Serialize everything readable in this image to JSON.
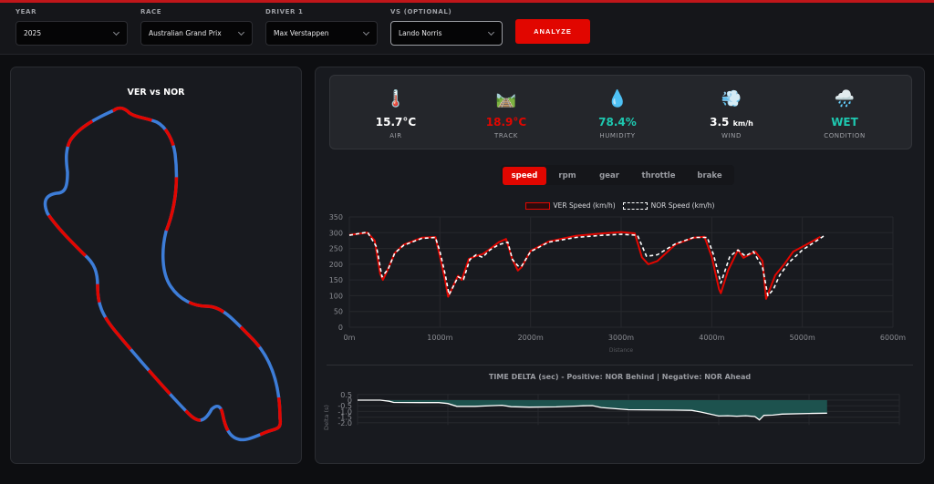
{
  "header": {
    "fields": [
      {
        "label": "YEAR",
        "value": "2025"
      },
      {
        "label": "RACE",
        "value": "Australian Grand Prix"
      },
      {
        "label": "DRIVER 1",
        "value": "Max Verstappen"
      },
      {
        "label": "VS (OPTIONAL)",
        "value": "Lando Norris"
      }
    ],
    "analyze_label": "ANALYZE"
  },
  "track_map": {
    "title": "VER vs NOR",
    "colors": {
      "VER": "#e10600",
      "NOR": "#3d7dd8"
    }
  },
  "weather": [
    {
      "icon": "🌡️",
      "icon_name": "thermometer-icon",
      "value": "15.7°C",
      "unit": "",
      "label": "AIR",
      "color": "#ffffff"
    },
    {
      "icon": "🛤️",
      "icon_name": "track-icon",
      "value": "18.9°C",
      "unit": "",
      "label": "TRACK",
      "color": "#e10600"
    },
    {
      "icon": "💧",
      "icon_name": "droplet-icon",
      "value": "78.4%",
      "unit": "",
      "label": "HUMIDITY",
      "color": "#1ec8b0"
    },
    {
      "icon": "💨",
      "icon_name": "wind-icon",
      "value": "3.5",
      "unit": "km/h",
      "label": "WIND",
      "color": "#ffffff"
    },
    {
      "icon": "🌧️",
      "icon_name": "rain-cloud-icon",
      "value": "WET",
      "unit": "",
      "label": "CONDITION",
      "color": "#1ec8b0"
    }
  ],
  "tabs": [
    "speed",
    "rpm",
    "gear",
    "throttle",
    "brake"
  ],
  "active_tab": "speed",
  "chart_data": [
    {
      "type": "line",
      "title": "",
      "xlabel": "Distance",
      "ylabel": "",
      "xlim": [
        0,
        6000
      ],
      "ylim": [
        0,
        350
      ],
      "x_ticks": [
        "0m",
        "1000m",
        "2000m",
        "3000m",
        "4000m",
        "5000m",
        "6000m"
      ],
      "y_ticks": [
        "0",
        "50",
        "100",
        "150",
        "200",
        "250",
        "300",
        "350"
      ],
      "grid": true,
      "legend_position": "top",
      "series": [
        {
          "name": "VER Speed (km/h)",
          "color": "#e10600",
          "style": "solid",
          "x": [
            0,
            200,
            280,
            340,
            370,
            420,
            500,
            600,
            800,
            950,
            1000,
            1060,
            1090,
            1130,
            1200,
            1240,
            1320,
            1400,
            1470,
            1550,
            1650,
            1730,
            1800,
            1860,
            1900,
            2000,
            2200,
            2500,
            2800,
            3000,
            3150,
            3230,
            3300,
            3400,
            3600,
            3800,
            3920,
            4000,
            4080,
            4100,
            4180,
            4290,
            4350,
            4480,
            4560,
            4600,
            4640,
            4700,
            4800,
            4900,
            5000,
            5200
          ],
          "values": [
            293,
            300,
            275,
            170,
            150,
            180,
            235,
            262,
            284,
            286,
            225,
            145,
            97,
            120,
            163,
            150,
            217,
            226,
            232,
            248,
            270,
            280,
            215,
            180,
            190,
            242,
            272,
            290,
            298,
            302,
            298,
            222,
            200,
            210,
            263,
            284,
            287,
            224,
            121,
            108,
            180,
            245,
            220,
            240,
            210,
            90,
            120,
            165,
            200,
            240,
            255,
            287
          ]
        },
        {
          "name": "NOR Speed (km/h)",
          "color": "#ffffff",
          "style": "dashed",
          "x": [
            0,
            200,
            300,
            360,
            430,
            500,
            600,
            800,
            950,
            1000,
            1060,
            1100,
            1140,
            1200,
            1260,
            1330,
            1400,
            1470,
            1550,
            1650,
            1750,
            1800,
            1860,
            1900,
            2000,
            2200,
            2500,
            2800,
            3000,
            3180,
            3280,
            3400,
            3600,
            3800,
            3950,
            4020,
            4100,
            4200,
            4290,
            4370,
            4460,
            4560,
            4620,
            4680,
            4750,
            4850,
            5000,
            5250
          ],
          "values": [
            292,
            302,
            255,
            160,
            185,
            235,
            260,
            282,
            285,
            240,
            165,
            103,
            125,
            160,
            152,
            215,
            230,
            222,
            245,
            262,
            270,
            215,
            195,
            193,
            240,
            270,
            285,
            292,
            295,
            292,
            225,
            230,
            265,
            285,
            285,
            230,
            140,
            225,
            245,
            226,
            240,
            190,
            100,
            120,
            165,
            205,
            245,
            292
          ]
        }
      ]
    },
    {
      "type": "area",
      "title": "TIME DELTA (sec) - Positive: NOR Behind | Negative: NOR Ahead",
      "xlabel": "",
      "ylabel": "Delta (s)",
      "xlim": [
        0,
        6000
      ],
      "ylim": [
        -2.1,
        0.5
      ],
      "y_ticks": [
        "0.5",
        "0",
        "-0.5",
        "-1.0",
        "-1.5",
        "-2.0"
      ],
      "grid": true,
      "series": [
        {
          "name": "Time delta",
          "color": "#ffffff",
          "fill": "#1d524e",
          "x": [
            0,
            250,
            350,
            400,
            700,
            900,
            1000,
            1100,
            1300,
            1500,
            1600,
            1700,
            1900,
            2200,
            2500,
            2600,
            2700,
            3000,
            3500,
            3700,
            3800,
            4000,
            4100,
            4200,
            4300,
            4400,
            4450,
            4500,
            4600,
            4700,
            5000,
            5200
          ],
          "values": [
            0,
            0,
            -0.1,
            -0.2,
            -0.22,
            -0.22,
            -0.3,
            -0.55,
            -0.55,
            -0.48,
            -0.45,
            -0.58,
            -0.62,
            -0.6,
            -0.5,
            -0.48,
            -0.65,
            -0.85,
            -0.88,
            -0.9,
            -1.05,
            -1.4,
            -1.38,
            -1.42,
            -1.38,
            -1.45,
            -1.75,
            -1.35,
            -1.32,
            -1.23,
            -1.18,
            -1.15
          ]
        }
      ]
    }
  ]
}
